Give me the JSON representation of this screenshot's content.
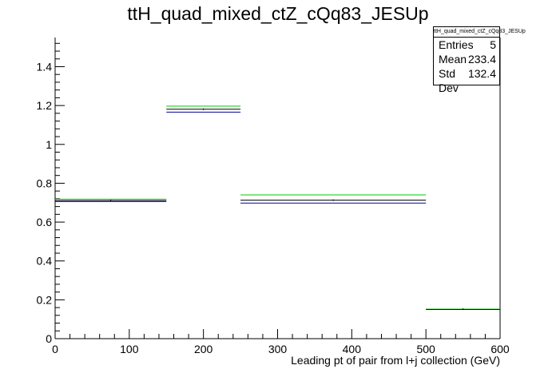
{
  "chart_data": {
    "type": "histogram",
    "title": "ttH_quad_mixed_ctZ_cQq83_JESUp",
    "xlabel": "Leading pt of pair from l+j collection (GeV)",
    "ylabel": "",
    "xlim": [
      0,
      600
    ],
    "ylim": [
      0,
      1.55
    ],
    "x_ticks": [
      "0",
      "100",
      "200",
      "300",
      "400",
      "500",
      "600"
    ],
    "y_ticks": [
      "0",
      "0.2",
      "0.4",
      "0.6",
      "0.8",
      "1",
      "1.2",
      "1.4"
    ],
    "bin_edges": [
      0,
      150,
      250,
      500,
      600
    ],
    "series": [
      {
        "values": [
          0.711,
          1.181,
          0.713,
          0.152
        ],
        "color": "#000000"
      },
      {
        "values": [
          0.718,
          1.197,
          0.74,
          0.152
        ],
        "color": "#00cc00"
      },
      {
        "values": [
          0.706,
          1.166,
          0.698,
          0.15
        ],
        "color": "#000099"
      }
    ],
    "stats": {
      "name": "ttH_quad_mixed_ctZ_cQq83_JESUp",
      "entries_label": "Entries",
      "entries": "5",
      "mean_label": "Mean",
      "mean": "233.4",
      "std_label": "Std Dev",
      "std": "132.4"
    },
    "grid": false,
    "legend": "none"
  }
}
